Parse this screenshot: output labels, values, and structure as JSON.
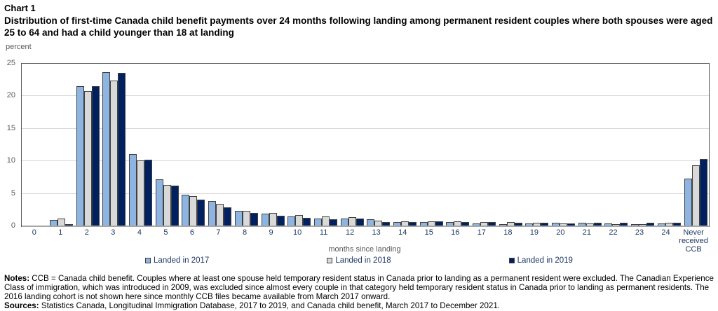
{
  "header": {
    "label": "Chart 1",
    "title": "Distribution of first-time Canada child benefit payments over 24 months following landing among permanent resident couples where both spouses were aged 25 to 64 and had a child younger than 18 at landing"
  },
  "chart_data": {
    "type": "bar",
    "title": "Distribution of first-time Canada child benefit payments over 24 months following landing among permanent resident couples where both spouses were aged 25 to 64 and had a child younger than 18 at landing",
    "ylabel": "percent",
    "xlabel": "months since landing",
    "ylim": [
      0,
      25
    ],
    "ytick_interval": 5,
    "grid": true,
    "legend_position": "bottom",
    "categories": [
      "0",
      "1",
      "2",
      "3",
      "4",
      "5",
      "6",
      "7",
      "8",
      "9",
      "10",
      "11",
      "12",
      "13",
      "14",
      "15",
      "16",
      "17",
      "18",
      "19",
      "20",
      "21",
      "22",
      "23",
      "24",
      "Never received CCB"
    ],
    "series": [
      {
        "name": "Landed in 2017",
        "color": "#8EB4E2",
        "values": [
          0.1,
          1.0,
          21.5,
          23.7,
          11.1,
          7.2,
          4.8,
          3.9,
          2.4,
          1.9,
          1.5,
          1.2,
          1.2,
          1.1,
          0.6,
          0.7,
          0.6,
          0.4,
          0.3,
          0.4,
          0.5,
          0.5,
          0.4,
          0.3,
          0.4,
          7.3
        ]
      },
      {
        "name": "Landed in 2018",
        "color": "#D9D9D9",
        "values": [
          0.1,
          1.2,
          20.8,
          22.4,
          10.1,
          6.4,
          4.6,
          3.4,
          2.4,
          2.0,
          1.7,
          1.5,
          1.4,
          0.9,
          0.8,
          0.8,
          0.8,
          0.7,
          0.6,
          0.5,
          0.4,
          0.4,
          0.3,
          0.3,
          0.5,
          9.4
        ]
      },
      {
        "name": "Landed in 2019",
        "color": "#002060",
        "values": [
          0.1,
          0.3,
          21.5,
          23.6,
          10.2,
          6.3,
          4.1,
          2.9,
          2.1,
          1.6,
          1.3,
          1.1,
          1.2,
          0.6,
          0.7,
          0.8,
          0.6,
          0.6,
          0.5,
          0.5,
          0.4,
          0.5,
          0.5,
          0.5,
          0.5,
          10.3
        ]
      }
    ]
  },
  "notes": {
    "notes_label": "Notes:",
    "notes_text": " CCB = Canada child benefit. Couples where at least one spouse held temporary resident status in Canada prior to landing as a permanent resident were excluded. The Canadian Experience Class of immigration, which was introduced in 2009, was excluded since almost every couple in that category held temporary resident status in Canada prior to landing as permanent residents. The 2016 landing cohort is not shown here since monthly CCB files became available from March 2017 onward.",
    "sources_label": "Sources:",
    "sources_text": " Statistics Canada, Longitudinal Immigration Database, 2017 to 2019, and Canada child benefit, March 2017 to December 2021."
  }
}
